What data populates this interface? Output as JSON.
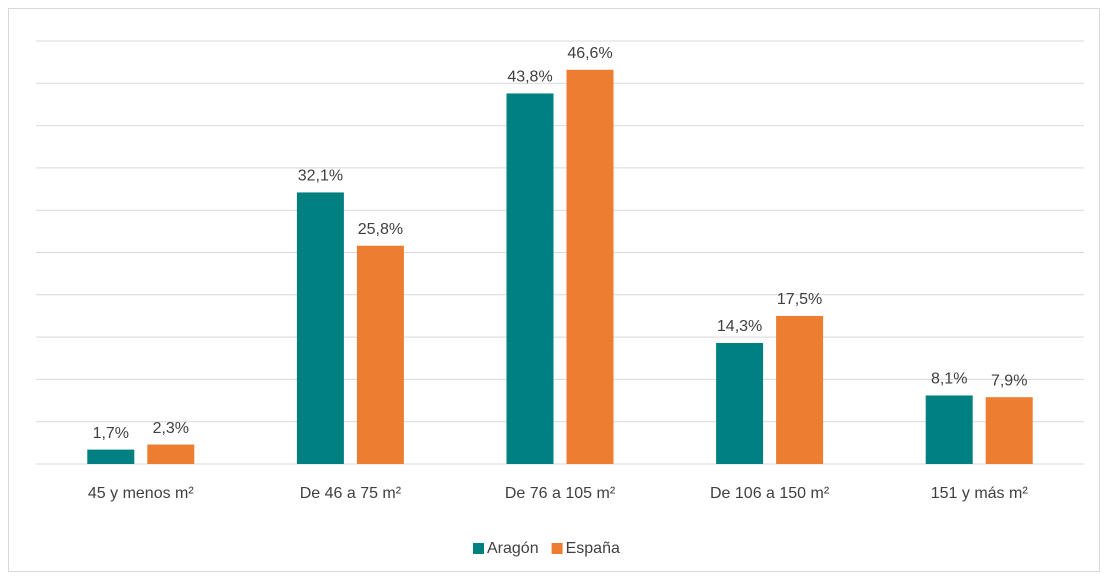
{
  "chart_data": {
    "type": "bar",
    "categories": [
      "45 y menos m²",
      "De 46 a 75 m²",
      "De 76 a 105 m²",
      "De 106 a 150 m²",
      "151 y más m²"
    ],
    "series": [
      {
        "name": "Aragón",
        "color": "#008080",
        "values": [
          1.7,
          32.1,
          43.8,
          14.3,
          8.1
        ],
        "value_labels": [
          "1,7%",
          "32,1%",
          "43,8%",
          "14,3%",
          "8,1%"
        ]
      },
      {
        "name": "España",
        "color": "#ED7D31",
        "values": [
          2.3,
          25.8,
          46.6,
          17.5,
          7.9
        ],
        "value_labels": [
          "2,3%",
          "25,8%",
          "46,6%",
          "17,5%",
          "7,9%"
        ]
      }
    ],
    "ylim": [
      0,
      50
    ],
    "yticks": [
      0,
      5,
      10,
      15,
      20,
      25,
      30,
      35,
      40,
      45,
      50
    ],
    "grid": true,
    "legend": "bottom"
  }
}
